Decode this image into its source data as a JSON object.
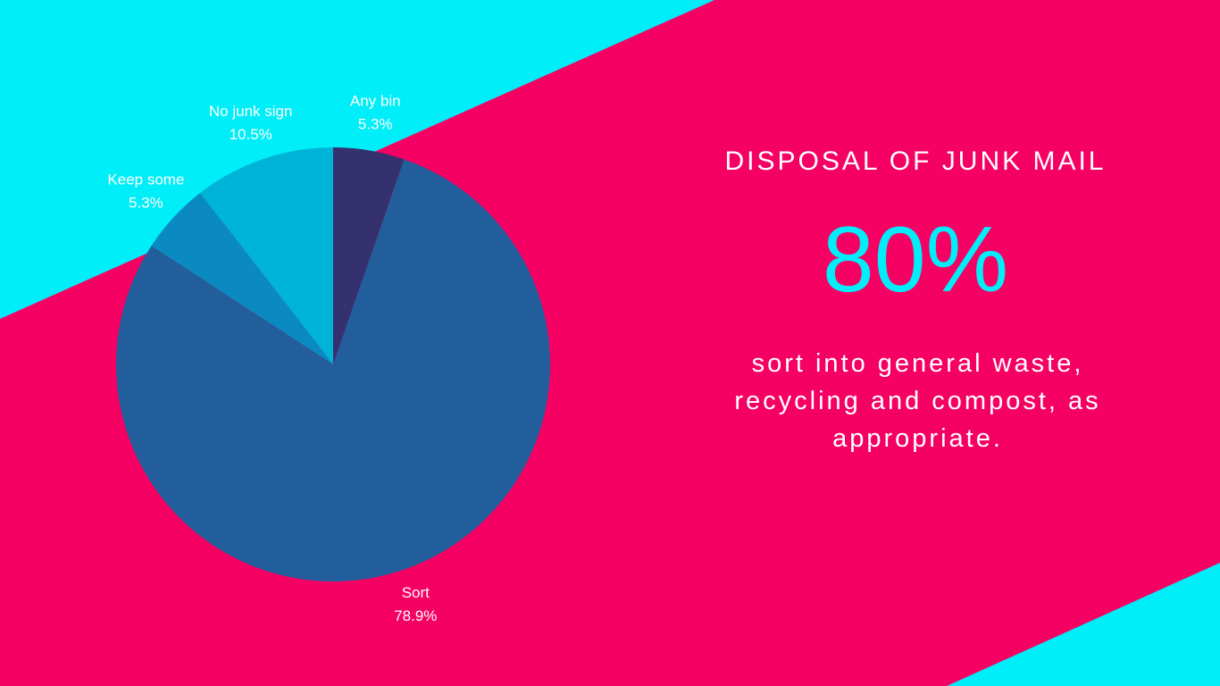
{
  "chart_data": {
    "type": "pie",
    "title": "DISPOSAL OF JUNK MAIL",
    "annotations": [
      {
        "text": "80%"
      },
      {
        "text": "sort into general waste, recycling and compost, as appropriate."
      }
    ],
    "categories": [
      "Any bin",
      "Sort",
      "Keep some",
      "No junk sign"
    ],
    "values": [
      5.3,
      78.9,
      5.3,
      10.5
    ],
    "value_labels": [
      "5.3%",
      "78.9%",
      "5.3%",
      "10.5%"
    ],
    "colors": [
      "#35306e",
      "#225e9c",
      "#0a8ac0",
      "#00b4d8"
    ]
  }
}
